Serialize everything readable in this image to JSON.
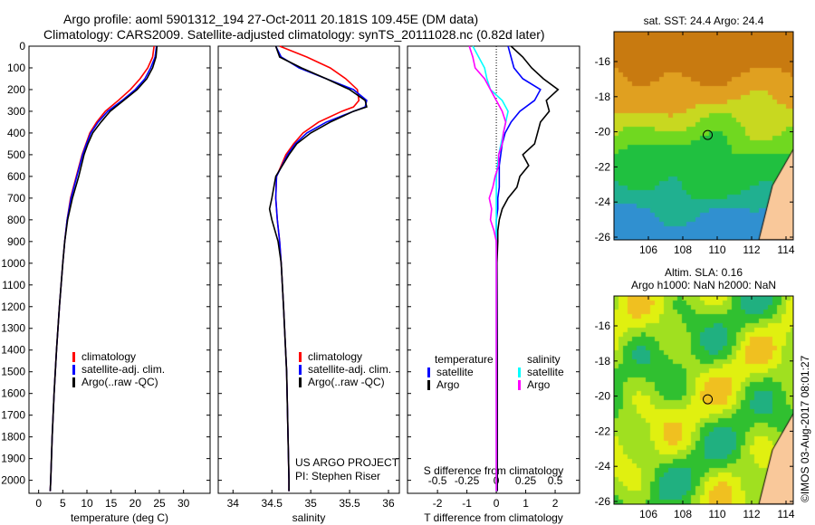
{
  "title_line1": "Argo profile: aoml 5901312_194 27-Oct-2011 20.181S 109.45E (DM data)",
  "title_line2": "Climatology: CARS2009. Satellite-adjusted climatology: synTS_20111028.nc (0.82d later)",
  "colors": {
    "climatology": "#ff0000",
    "satellite": "#0000ff",
    "argo": "#000000",
    "sal_sat": "#00ffff",
    "sal_argo": "#ff00ff"
  },
  "legend": {
    "climatology": "climatology",
    "satellite": "satellite-adj. clim.",
    "argo": "Argo(..raw -QC)"
  },
  "diff_legend": {
    "temperature": "temperature",
    "salinity": "salinity",
    "satellite": "satellite",
    "argo": "Argo"
  },
  "credit": {
    "line1": "US ARGO PROJECT",
    "line2": "PI: Stephen Riser"
  },
  "timestamp": "©IMOS 03-Aug-2017 08:01:27",
  "map_sst": {
    "title": "sat. SST: 24.4  Argo: 24.4",
    "lat_ticks": [
      "-16",
      "-18",
      "-20",
      "-22",
      "-24",
      "-26"
    ],
    "lon_ticks": [
      "106",
      "108",
      "110",
      "112",
      "114"
    ]
  },
  "map_sla": {
    "title1": "Altim. SLA: 0.16",
    "title2": "Argo h1000: NaN h2000: NaN",
    "lat_ticks": [
      "-16",
      "-18",
      "-20",
      "-22",
      "-24",
      "-26"
    ],
    "lon_ticks": [
      "106",
      "108",
      "110",
      "112",
      "114"
    ]
  },
  "chart_data": [
    {
      "type": "line",
      "xlabel": "temperature (deg C)",
      "ylabel": "",
      "xlim": [
        -2,
        35.5
      ],
      "ylim": [
        0,
        2060
      ],
      "xticks": [
        0,
        5,
        10,
        15,
        20,
        25,
        30
      ],
      "yticks": [
        0,
        100,
        200,
        300,
        400,
        500,
        600,
        700,
        800,
        900,
        1000,
        1100,
        1200,
        1300,
        1400,
        1500,
        1600,
        1700,
        1800,
        1900,
        2000
      ],
      "depth": [
        0,
        50,
        100,
        150,
        200,
        250,
        300,
        350,
        400,
        450,
        500,
        600,
        700,
        800,
        900,
        1000,
        1200,
        1400,
        1600,
        1800,
        2000,
        2050
      ],
      "series": [
        {
          "name": "climatology",
          "values": [
            23.9,
            23.6,
            22.6,
            21,
            19,
            16.5,
            13.8,
            12,
            10.6,
            9.8,
            9,
            7.8,
            6.6,
            5.9,
            5.4,
            5,
            4.3,
            3.7,
            3.2,
            2.8,
            2.5,
            2.4
          ]
        },
        {
          "name": "satellite-adj. clim.",
          "values": [
            24.4,
            24.1,
            23.2,
            22,
            20,
            17.3,
            14.3,
            12.3,
            10.8,
            9.9,
            9.1,
            7.9,
            6.7,
            5.9,
            5.4,
            5,
            4.3,
            3.7,
            3.2,
            2.8,
            2.5,
            2.4
          ]
        },
        {
          "name": "Argo(..raw -QC)",
          "values": [
            24.5,
            24.3,
            23.6,
            22.4,
            20.4,
            17.6,
            14.8,
            12.9,
            11.2,
            10.2,
            9.4,
            8.3,
            7,
            6,
            5.4,
            5,
            4.3,
            3.7,
            3.2,
            2.8,
            2.5,
            2.4
          ]
        }
      ]
    },
    {
      "type": "line",
      "xlabel": "salinity",
      "xlim": [
        33.81,
        36.14
      ],
      "ylim": [
        0,
        2060
      ],
      "xticks": [
        34,
        34.5,
        35,
        35.5,
        36
      ],
      "depth": [
        0,
        50,
        100,
        150,
        200,
        250,
        280,
        300,
        350,
        400,
        450,
        500,
        600,
        700,
        750,
        800,
        900,
        1000,
        1200,
        1500,
        2000,
        2050
      ],
      "series": [
        {
          "name": "climatology",
          "values": [
            34.6,
            34.95,
            35.25,
            35.45,
            35.6,
            35.62,
            35.55,
            35.4,
            35.1,
            34.9,
            34.78,
            34.68,
            34.56,
            34.55,
            34.56,
            34.57,
            34.6,
            34.62,
            34.65,
            34.69,
            34.72,
            34.72
          ]
        },
        {
          "name": "satellite-adj. clim.",
          "values": [
            34.55,
            34.62,
            34.85,
            35.2,
            35.55,
            35.72,
            35.7,
            35.55,
            35.2,
            34.95,
            34.8,
            34.7,
            34.56,
            34.55,
            34.56,
            34.57,
            34.6,
            34.62,
            34.65,
            34.69,
            34.72,
            34.72
          ]
        },
        {
          "name": "Argo(..raw -QC)",
          "values": [
            34.55,
            34.6,
            34.88,
            35.2,
            35.5,
            35.7,
            35.72,
            35.55,
            35.25,
            35,
            34.82,
            34.72,
            34.55,
            34.5,
            34.47,
            34.5,
            34.58,
            34.62,
            34.65,
            34.69,
            34.72,
            34.72
          ]
        }
      ]
    },
    {
      "type": "line",
      "xlabel": "T difference from climatology",
      "x2label": "S difference from climatology",
      "xlim": [
        -3.02,
        2.83
      ],
      "ylim": [
        0,
        2060
      ],
      "xticks": [
        -2,
        -1,
        0,
        1,
        2
      ],
      "x2ticks": [
        "-0.5",
        "-0.25",
        "0",
        "0.25",
        "0.5"
      ],
      "x2values": [
        -0.5,
        -0.25,
        0,
        0.25,
        0.5
      ],
      "depth": [
        0,
        50,
        100,
        150,
        200,
        250,
        300,
        350,
        400,
        450,
        500,
        550,
        600,
        650,
        700,
        750,
        800,
        850,
        900,
        1000,
        1500,
        2000,
        2050
      ],
      "series": [
        {
          "name": "temperature satellite",
          "values": [
            0.4,
            0.5,
            0.6,
            0.9,
            1.5,
            1.3,
            0.8,
            0.5,
            0.3,
            0.2,
            0.15,
            0.1,
            0.1,
            0.1,
            0.05,
            0.05,
            0,
            0,
            0,
            0.02,
            0.03,
            0.03,
            0.03
          ]
        },
        {
          "name": "temperature Argo",
          "values": [
            0.5,
            0.9,
            1.2,
            1.6,
            2.1,
            1.7,
            1.8,
            1.5,
            1.4,
            1.3,
            0.9,
            1.1,
            0.8,
            0.7,
            0.4,
            0.2,
            0.1,
            0.05,
            0.05,
            0.02,
            0.03,
            0.03,
            0.03
          ]
        },
        {
          "name": "salinity satellite",
          "values": [
            -0.2,
            -0.15,
            -0.1,
            -0.08,
            -0.05,
            0.05,
            0.1,
            0.08,
            0.06,
            0.04,
            0.02,
            0.01,
            0,
            0,
            0,
            0,
            0,
            0,
            0,
            0,
            0,
            0,
            0
          ]
        },
        {
          "name": "salinity Argo",
          "values": [
            -0.23,
            -0.2,
            -0.18,
            -0.1,
            -0.05,
            0,
            0.05,
            0.08,
            0.06,
            0.05,
            0.02,
            0.02,
            -0.01,
            -0.03,
            -0.06,
            -0.04,
            -0.05,
            -0.02,
            0,
            0,
            0,
            0,
            0
          ]
        }
      ]
    }
  ]
}
